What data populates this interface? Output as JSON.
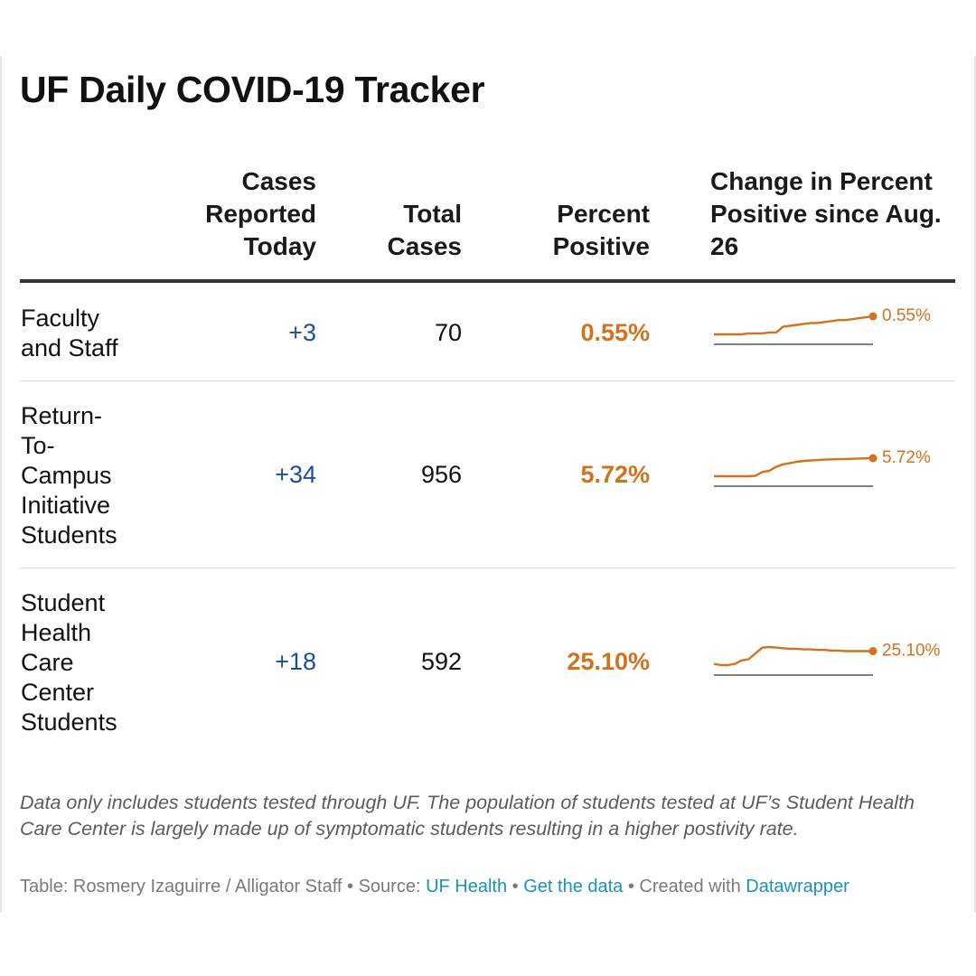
{
  "title": "UF Daily COVID-19 Tracker",
  "columns": {
    "today": "Cases\nReported\nToday",
    "total": "Total\nCases",
    "percent": "Percent\nPositive",
    "change": "Change in Percent\nPositive since Aug.\n26"
  },
  "colors": {
    "accent": "#d4711c",
    "link": "#1a93b8",
    "today": "#1a4f9c"
  },
  "chart_data": {
    "type": "table",
    "title": "UF Daily COVID-19 Tracker",
    "columns": [
      "Cases Reported Today",
      "Total Cases",
      "Percent Positive",
      "Change in Percent Positive since Aug. 26"
    ],
    "rows": [
      {
        "label": "Faculty\nand Staff",
        "today": "+3",
        "total": "70",
        "percent": "0.55%",
        "spark_label": "0.55%",
        "sparkline": [
          0.36,
          0.36,
          0.36,
          0.36,
          0.36,
          0.37,
          0.37,
          0.37,
          0.38,
          0.38,
          0.44,
          0.45,
          0.46,
          0.47,
          0.48,
          0.48,
          0.49,
          0.5,
          0.51,
          0.51,
          0.52,
          0.53,
          0.54,
          0.55
        ]
      },
      {
        "label": "Return-\nTo-\nCampus\nInitiative\nStudents",
        "today": "+34",
        "total": "956",
        "percent": "5.72%",
        "spark_label": "5.72%",
        "sparkline": [
          3.6,
          3.6,
          3.6,
          3.6,
          3.6,
          3.6,
          3.65,
          4.1,
          4.25,
          4.7,
          5.0,
          5.15,
          5.3,
          5.4,
          5.45,
          5.5,
          5.55,
          5.58,
          5.6,
          5.62,
          5.65,
          5.68,
          5.7,
          5.72
        ]
      },
      {
        "label": "Student\nHealth\nCare\nCenter\nStudents",
        "today": "+18",
        "total": "592",
        "percent": "25.10%",
        "spark_label": "25.10%",
        "sparkline": [
          24.0,
          23.9,
          23.9,
          24.0,
          24.3,
          24.4,
          24.9,
          25.4,
          25.45,
          25.4,
          25.35,
          25.3,
          25.3,
          25.25,
          25.25,
          25.2,
          25.2,
          25.15,
          25.15,
          25.1,
          25.1,
          25.1,
          25.1,
          25.1
        ]
      }
    ]
  },
  "notes": "Data only includes students tested through UF. The population of students tested at UF’s Student Health Care Center is largely made up of symptomatic students resulting in a higher postivity rate.",
  "credit": {
    "prefix": "Table: Rosmery Izaguirre / Alligator Staff • Source: ",
    "source_link": "UF Health",
    "sep1": " • ",
    "data_link": "Get the data",
    "sep2": " • Created with ",
    "tool_link": "Datawrapper"
  }
}
